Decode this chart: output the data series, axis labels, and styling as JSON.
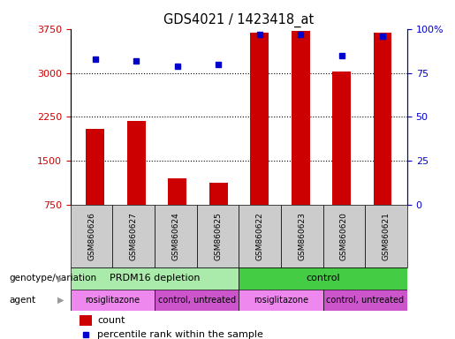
{
  "title": "GDS4021 / 1423418_at",
  "samples": [
    "GSM860626",
    "GSM860627",
    "GSM860624",
    "GSM860625",
    "GSM860622",
    "GSM860623",
    "GSM860620",
    "GSM860621"
  ],
  "counts": [
    2050,
    2175,
    1200,
    1130,
    3680,
    3720,
    3020,
    3680
  ],
  "percentile_ranks": [
    83,
    82,
    79,
    80,
    97,
    97,
    85,
    96
  ],
  "ylim_left": [
    750,
    3750
  ],
  "yticks_left": [
    750,
    1500,
    2250,
    3000,
    3750
  ],
  "ylim_right": [
    0,
    100
  ],
  "yticks_right": [
    0,
    25,
    50,
    75,
    100
  ],
  "ytick_right_labels": [
    "0",
    "25",
    "50",
    "75",
    "100%"
  ],
  "bar_color": "#cc0000",
  "dot_color": "#0000cc",
  "bg_color": "#ffffff",
  "sample_box_color": "#cccccc",
  "genotype_groups": [
    {
      "label": "PRDM16 depletion",
      "start": 0,
      "end": 4,
      "color": "#aaeaaa"
    },
    {
      "label": "control",
      "start": 4,
      "end": 8,
      "color": "#44cc44"
    }
  ],
  "agent_groups": [
    {
      "label": "rosiglitazone",
      "start": 0,
      "end": 2,
      "color": "#ee88ee"
    },
    {
      "label": "control, untreated",
      "start": 2,
      "end": 4,
      "color": "#cc55cc"
    },
    {
      "label": "rosiglitazone",
      "start": 4,
      "end": 6,
      "color": "#ee88ee"
    },
    {
      "label": "control, untreated",
      "start": 6,
      "end": 8,
      "color": "#cc55cc"
    }
  ],
  "bar_color_legend": "#cc0000",
  "dot_color_legend": "#0000cc",
  "left_axis_color": "#cc0000",
  "right_axis_color": "#0000cc"
}
